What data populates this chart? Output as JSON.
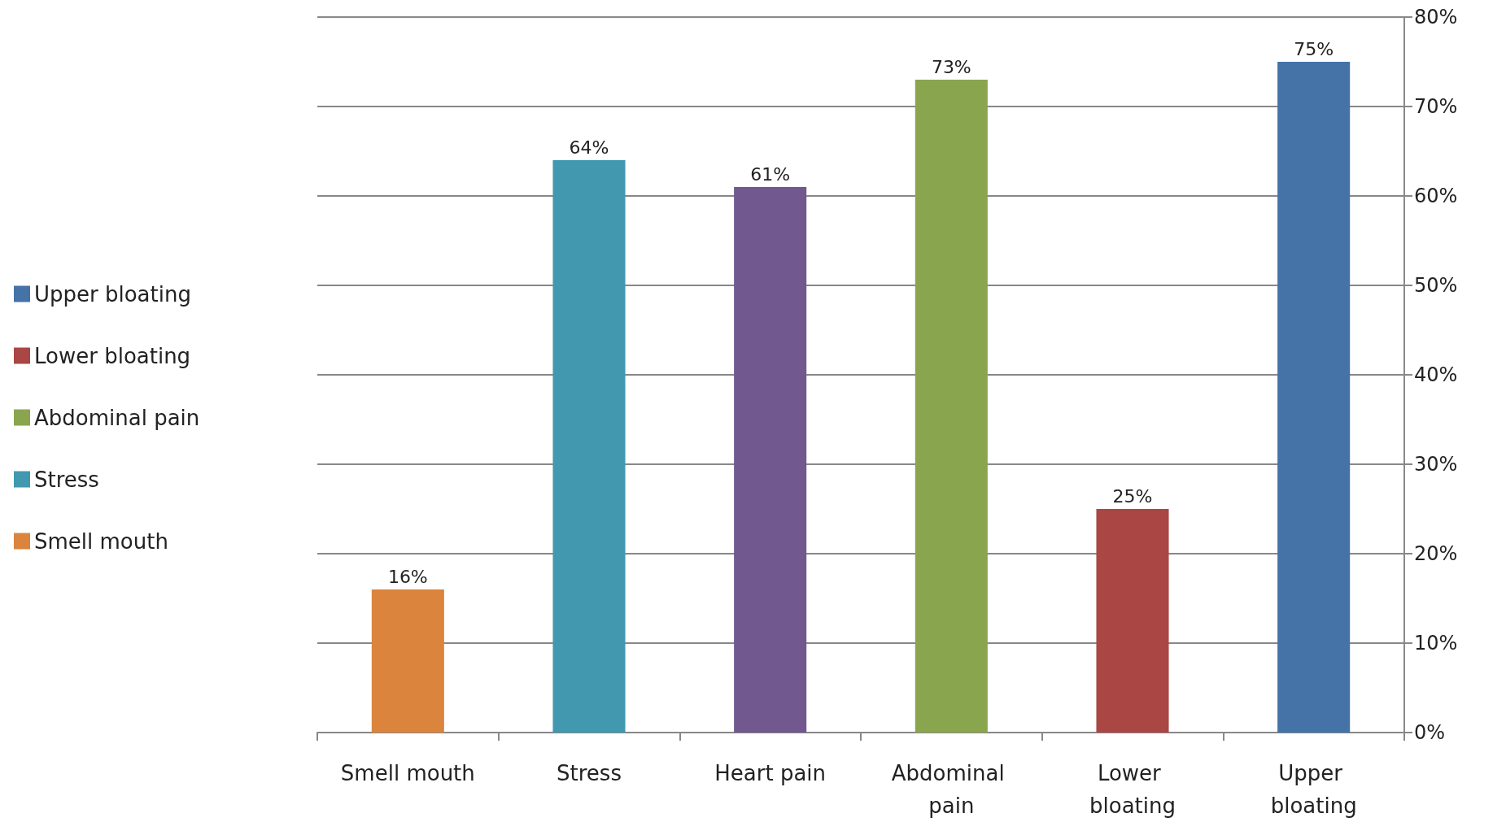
{
  "chart_data": {
    "type": "bar",
    "stacked": true,
    "categories": [
      "Smell mouth",
      "Stress",
      "Heart pain",
      "Abdominal pain",
      "Lower bloating",
      "Upper bloating"
    ],
    "series": [
      {
        "name": "Smell mouth",
        "color": "#db843d",
        "values": [
          16,
          null,
          null,
          null,
          null,
          null
        ],
        "value_labels": [
          "16%",
          null,
          null,
          null,
          null,
          null
        ]
      },
      {
        "name": "Stress",
        "color": "#4198af",
        "values": [
          null,
          64,
          null,
          null,
          null,
          null
        ],
        "value_labels": [
          null,
          "64%",
          null,
          null,
          null,
          null
        ]
      },
      {
        "color": "#71588f",
        "values": [
          null,
          null,
          61,
          null,
          null,
          null
        ],
        "value_labels": [
          null,
          null,
          "61%",
          null,
          null,
          null
        ]
      },
      {
        "name": "Abdominal pain",
        "color": "#89a54e",
        "values": [
          null,
          null,
          null,
          73,
          null,
          null
        ],
        "value_labels": [
          null,
          null,
          null,
          "73%",
          null,
          null
        ]
      },
      {
        "name": "Lower bloating",
        "color": "#aa4643",
        "values": [
          null,
          null,
          null,
          null,
          25,
          null
        ],
        "value_labels": [
          null,
          null,
          null,
          null,
          "25%",
          null
        ]
      },
      {
        "name": "Upper bloating",
        "color": "#4572a7",
        "values": [
          null,
          null,
          null,
          null,
          null,
          75
        ],
        "value_labels": [
          null,
          null,
          null,
          null,
          null,
          "75%"
        ]
      }
    ],
    "ylim": [
      0,
      80
    ],
    "yticks": [
      {
        "value": 0,
        "label": "0%"
      },
      {
        "value": 10,
        "label": "10%"
      },
      {
        "value": 20,
        "label": "20%"
      },
      {
        "value": 30,
        "label": "30%"
      },
      {
        "value": 40,
        "label": "40%"
      },
      {
        "value": 50,
        "label": "50%"
      },
      {
        "value": 60,
        "label": "60%"
      },
      {
        "value": 70,
        "label": "70%"
      },
      {
        "value": 80,
        "label": "80%"
      }
    ],
    "grid": "y",
    "legend": "left"
  }
}
